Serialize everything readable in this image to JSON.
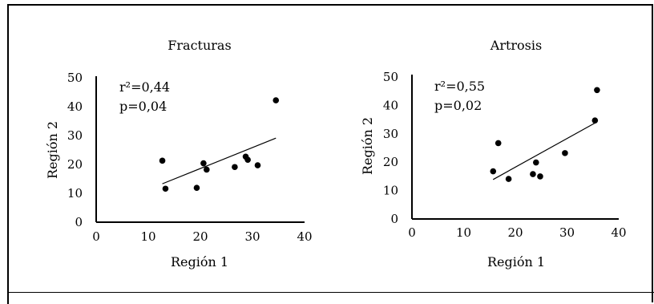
{
  "chart_data": [
    {
      "type": "scatter",
      "title": "Fracturas",
      "xlabel": "Región 1",
      "ylabel": "Región 2",
      "xlim": [
        0,
        40
      ],
      "ylim": [
        0,
        50
      ],
      "xticks": [
        "0",
        "10",
        "20",
        "30",
        "40"
      ],
      "yticks": [
        "0",
        "10",
        "20",
        "30",
        "40",
        "50"
      ],
      "annotations": [
        "r²=0,44",
        "p=0,04"
      ],
      "grid": false,
      "points": [
        {
          "x": 12.7,
          "y": 21.3
        },
        {
          "x": 13.3,
          "y": 11.6
        },
        {
          "x": 19.3,
          "y": 11.9
        },
        {
          "x": 20.6,
          "y": 20.4
        },
        {
          "x": 21.2,
          "y": 18.2
        },
        {
          "x": 26.6,
          "y": 19.1
        },
        {
          "x": 28.7,
          "y": 22.7
        },
        {
          "x": 29.1,
          "y": 21.6
        },
        {
          "x": 31.0,
          "y": 19.7
        },
        {
          "x": 34.5,
          "y": 42.2
        }
      ],
      "trendline": {
        "x": [
          12.7,
          34.5
        ],
        "y": [
          13.3,
          29.1
        ]
      }
    },
    {
      "type": "scatter",
      "title": "Artrosis",
      "xlabel": "Región 1",
      "ylabel": "Región 2",
      "xlim": [
        0,
        40
      ],
      "ylim": [
        0,
        50
      ],
      "xticks": [
        "0",
        "10",
        "20",
        "30",
        "40"
      ],
      "yticks": [
        "0",
        "10",
        "20",
        "30",
        "40",
        "50"
      ],
      "annotations": [
        "r²=0,55",
        "p=0,02"
      ],
      "grid": false,
      "points": [
        {
          "x": 15.7,
          "y": 16.8
        },
        {
          "x": 16.7,
          "y": 26.7
        },
        {
          "x": 18.7,
          "y": 14.1
        },
        {
          "x": 23.4,
          "y": 15.8
        },
        {
          "x": 24.0,
          "y": 19.9
        },
        {
          "x": 24.8,
          "y": 15.0
        },
        {
          "x": 29.6,
          "y": 23.2
        },
        {
          "x": 35.4,
          "y": 34.7
        },
        {
          "x": 35.8,
          "y": 45.4
        }
      ],
      "trendline": {
        "x": [
          15.7,
          35.4
        ],
        "y": [
          13.9,
          33.8
        ]
      }
    }
  ]
}
